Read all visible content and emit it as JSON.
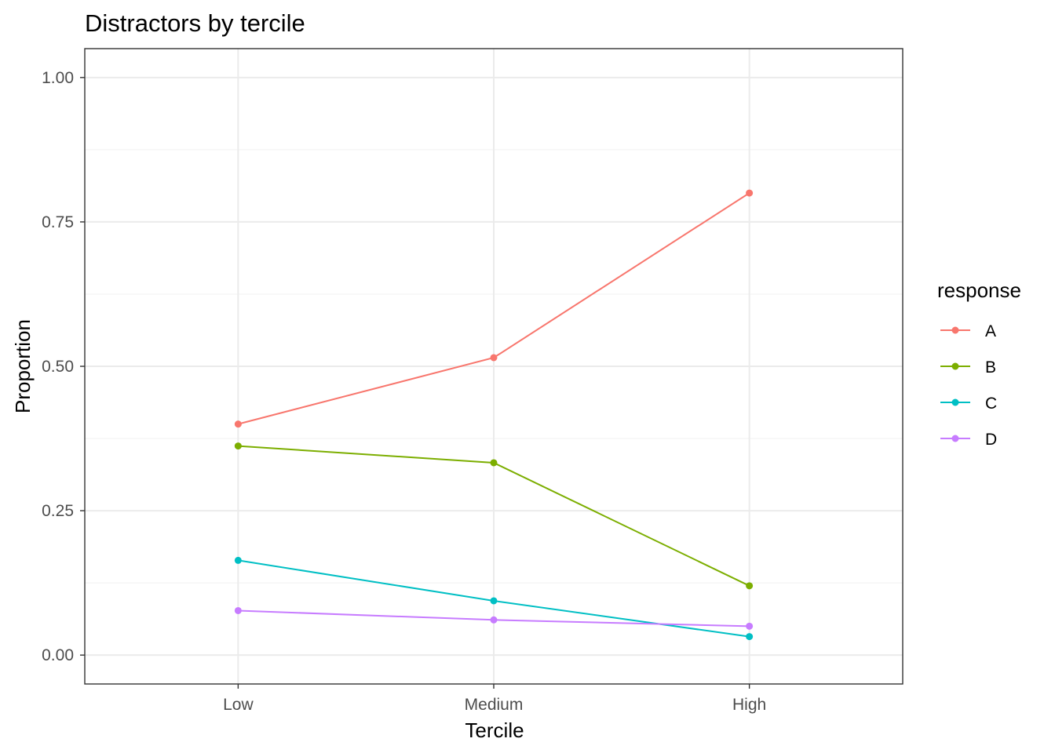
{
  "chart_data": {
    "type": "line",
    "title": "Distractors by tercile",
    "xlabel": "Tercile",
    "ylabel": "Proportion",
    "categories": [
      "Low",
      "Medium",
      "High"
    ],
    "ylim": [
      -0.05,
      1.05
    ],
    "yticks": [
      0.0,
      0.25,
      0.5,
      0.75,
      1.0
    ],
    "ytick_labels": [
      "0.00",
      "0.25",
      "0.50",
      "0.75",
      "1.00"
    ],
    "grid": true,
    "legend": {
      "title": "response",
      "placement": "right"
    },
    "series": [
      {
        "name": "A",
        "color": "#F8766D",
        "values": [
          0.4,
          0.515,
          0.8
        ]
      },
      {
        "name": "B",
        "color": "#7CAE00",
        "values": [
          0.362,
          0.333,
          0.12
        ]
      },
      {
        "name": "C",
        "color": "#00BFC4",
        "values": [
          0.164,
          0.094,
          0.032
        ]
      },
      {
        "name": "D",
        "color": "#C77CFF",
        "values": [
          0.077,
          0.061,
          0.05
        ]
      }
    ]
  }
}
